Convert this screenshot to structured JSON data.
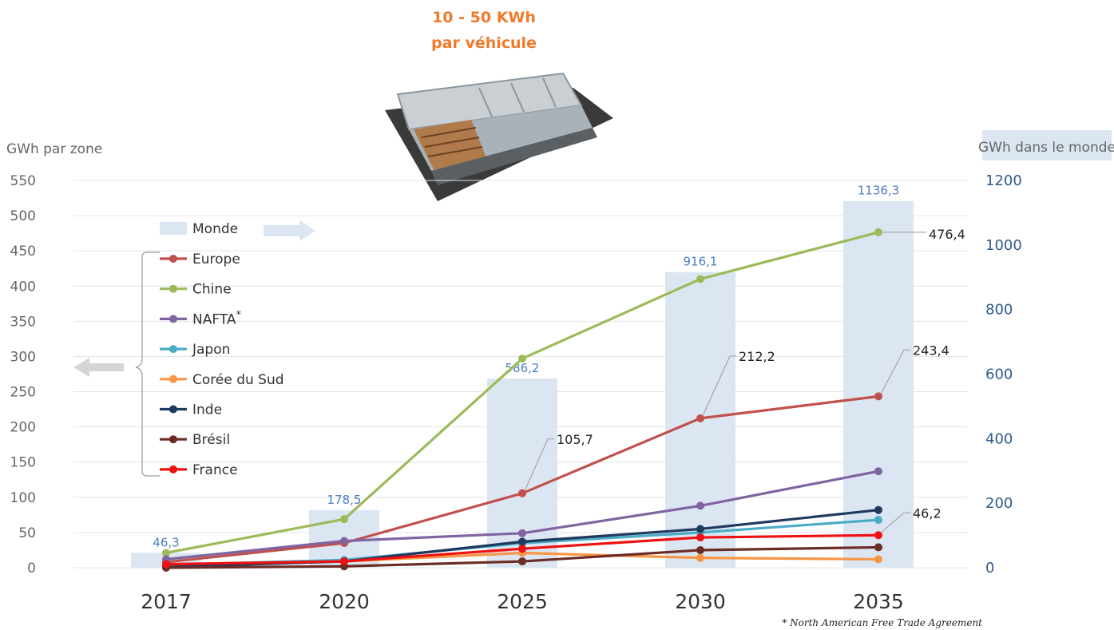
{
  "header": {
    "line1": "10 - 50 KWh",
    "line2": "par véhicule"
  },
  "footnote": "* North American Free Trade Agreement",
  "chart_data": {
    "type": "line",
    "title": "",
    "x": [
      "2017",
      "2020",
      "2025",
      "2030",
      "2035"
    ],
    "ylabel_left": "GWh par zone",
    "ylabel_right": "GWh dans le monde",
    "ylim_left": [
      0,
      550
    ],
    "ylim_right": [
      0,
      1200
    ],
    "yticks_left": [
      0,
      50,
      100,
      150,
      200,
      250,
      300,
      350,
      400,
      450,
      500,
      550
    ],
    "yticks_right": [
      0,
      200,
      400,
      600,
      800,
      1000,
      1200
    ],
    "bars": {
      "name": "Monde",
      "axis": "right",
      "values": [
        46.3,
        178.5,
        586.2,
        916.1,
        1136.3
      ],
      "labels": [
        "46,3",
        "178,5",
        "586,2",
        "916,1",
        "1136,3"
      ],
      "color": "#dce6f2"
    },
    "series": [
      {
        "name": "Europe",
        "color": "#c0504d",
        "values": [
          8,
          35,
          105.7,
          212.2,
          243.4
        ]
      },
      {
        "name": "Chine",
        "color": "#9bbb59",
        "values": [
          21,
          69,
          297,
          410,
          476.4
        ]
      },
      {
        "name": "NAFTA",
        "sup": "*",
        "color": "#8064a2",
        "values": [
          12,
          38,
          49,
          88,
          137
        ]
      },
      {
        "name": "Japon",
        "color": "#4bacc6",
        "values": [
          4,
          11,
          35,
          50,
          68
        ]
      },
      {
        "name": "Corée du Sud",
        "color": "#f79646",
        "values": [
          2,
          9,
          21,
          14,
          12
        ]
      },
      {
        "name": "Inde",
        "color": "#1f3a5f",
        "values": [
          1,
          9,
          37,
          55,
          82
        ]
      },
      {
        "name": "Brésil",
        "color": "#6b2c26",
        "values": [
          0,
          2,
          9,
          25,
          29
        ]
      },
      {
        "name": "France",
        "color": "#ee1111",
        "values": [
          5,
          9,
          27,
          43,
          46.2
        ]
      }
    ],
    "annotations": [
      {
        "text": "476,4",
        "series": "Chine",
        "index": 4
      },
      {
        "text": "243,4",
        "series": "Europe",
        "index": 4
      },
      {
        "text": "212,2",
        "series": "Europe",
        "index": 3
      },
      {
        "text": "105,7",
        "series": "Europe",
        "index": 2
      },
      {
        "text": "46,2",
        "series": "France",
        "index": 4
      }
    ],
    "grid": true,
    "legend": "left"
  }
}
